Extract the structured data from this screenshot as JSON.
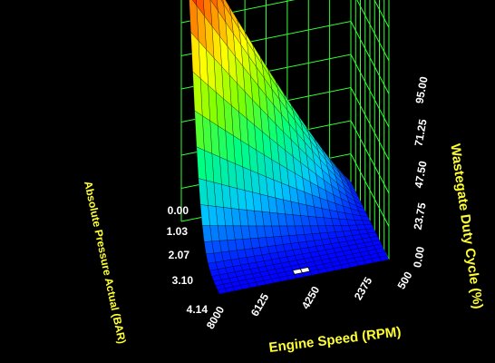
{
  "chart_data": {
    "type": "surface-3d",
    "x_axis": {
      "label": "Engine Speed (RPM)",
      "ticks": [
        "8000",
        "6125",
        "4250",
        "2375",
        "500"
      ],
      "range": [
        500,
        8000
      ]
    },
    "y_axis": {
      "label": "Absolute Pressure Actual (BAR)",
      "ticks": [
        "0.00",
        "1.03",
        "2.07",
        "3.10",
        "4.14"
      ],
      "range": [
        0,
        4.14
      ]
    },
    "z_axis": {
      "label": "Wastegate Duty Cycle (%)",
      "ticks": [
        "0.00",
        "23.75",
        "47.50",
        "71.25",
        "95.00"
      ],
      "range": [
        0,
        95
      ]
    },
    "peak": {
      "rpm": 8000,
      "pressure_bar": 0.0,
      "duty_cycle_pct": 95.0
    },
    "background": "#000000",
    "grid_color": "#33ff33",
    "label_color": "#ffff33",
    "tick_color": "#ffffff",
    "colormap": [
      "#0000ff",
      "#00c8ff",
      "#00ff80",
      "#80ff00",
      "#ffff00",
      "#ff8000",
      "#ff0000"
    ]
  }
}
